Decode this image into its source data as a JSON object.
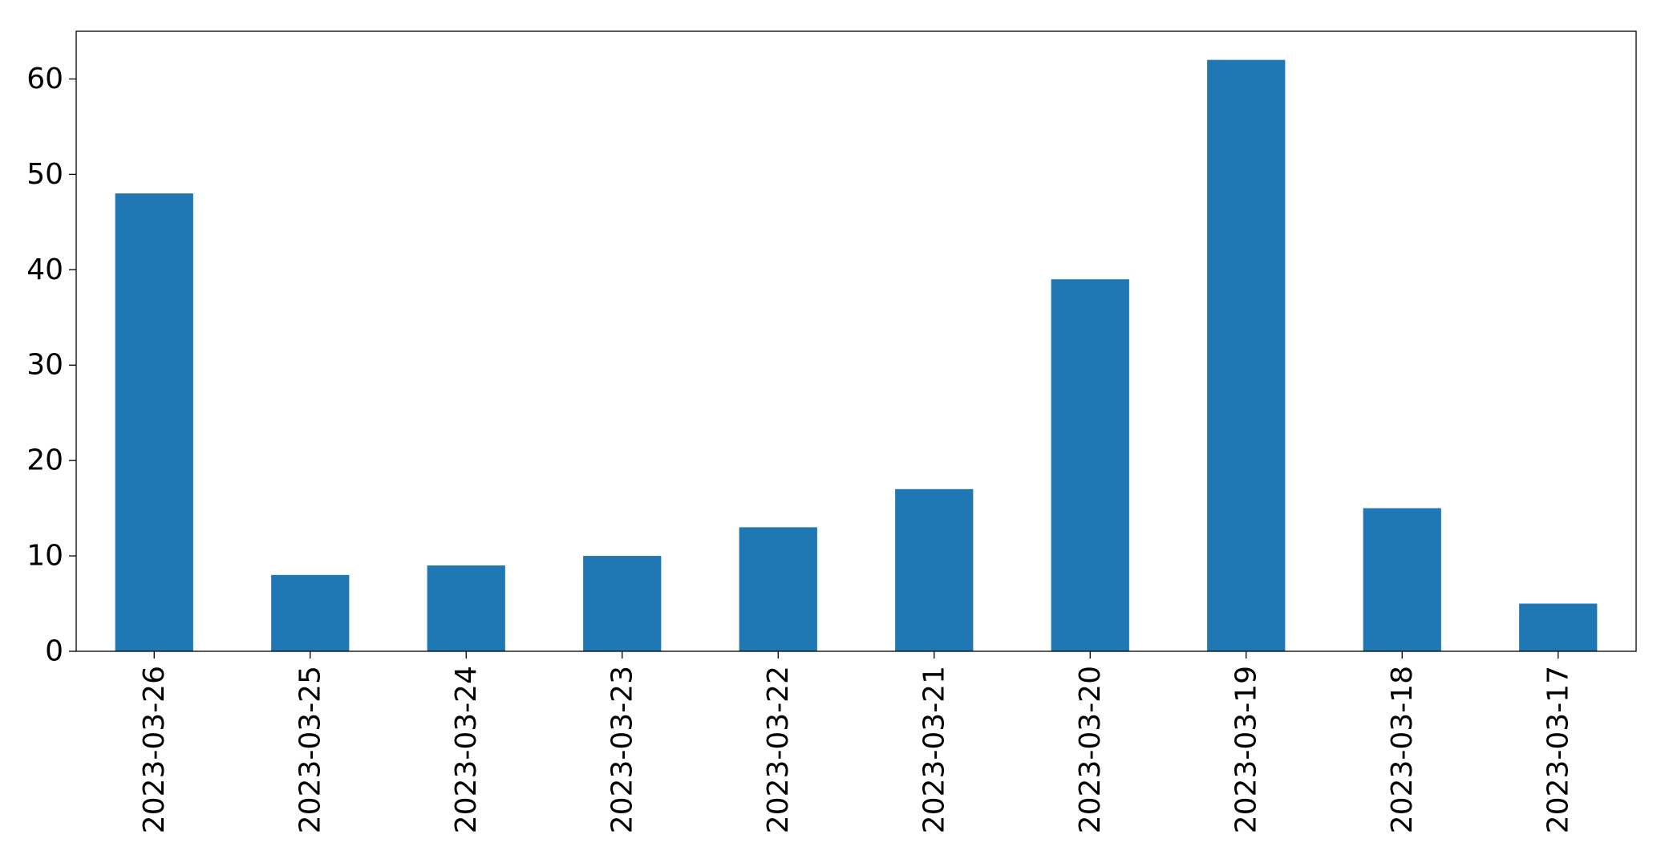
{
  "chart_data": {
    "type": "bar",
    "title": "",
    "xlabel": "",
    "ylabel": "",
    "categories": [
      "2023-03-26",
      "2023-03-25",
      "2023-03-24",
      "2023-03-23",
      "2023-03-22",
      "2023-03-21",
      "2023-03-20",
      "2023-03-19",
      "2023-03-18",
      "2023-03-17"
    ],
    "values": [
      48,
      8,
      9,
      10,
      13,
      17,
      39,
      62,
      15,
      5
    ],
    "ylim": [
      0,
      65
    ],
    "yticks": [
      0,
      10,
      20,
      30,
      40,
      50,
      60
    ],
    "grid": false,
    "legend": "none",
    "bar_color": "#1f77b4",
    "tick_label_rotation": "vertical"
  }
}
